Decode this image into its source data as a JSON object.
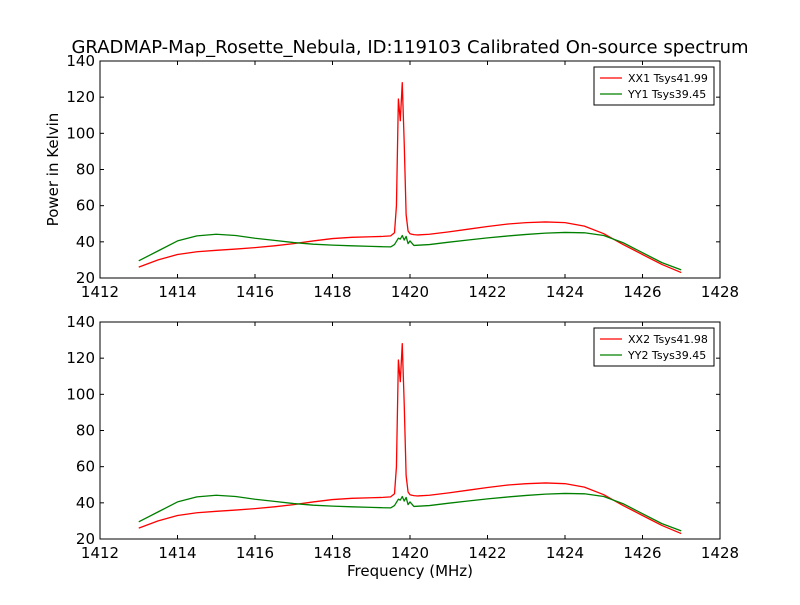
{
  "title": "GRADMAP-Map_Rosette_Nebula, ID:119103 Calibrated On-source spectrum",
  "colors": {
    "xx": "#ff0000",
    "yy": "#008000"
  },
  "chart_data": [
    {
      "type": "line",
      "title": "GRADMAP-Map_Rosette_Nebula, ID:119103 Calibrated On-source spectrum",
      "xlabel": "",
      "ylabel": "Power in Kelvin",
      "xlim": [
        1412,
        1428
      ],
      "ylim": [
        20,
        140
      ],
      "xticks": [
        "1412",
        "1414",
        "1416",
        "1418",
        "1420",
        "1422",
        "1424",
        "1426",
        "1428"
      ],
      "yticks": [
        "20",
        "40",
        "60",
        "80",
        "100",
        "120",
        "140"
      ],
      "grid": false,
      "legend_position": "top-right",
      "series": [
        {
          "name": "XX1 Tsys41.99",
          "color": "#ff0000",
          "x": [
            1413.0,
            1413.5,
            1414.0,
            1414.5,
            1415.0,
            1415.5,
            1416.0,
            1416.5,
            1417.0,
            1417.5,
            1418.0,
            1418.5,
            1419.0,
            1419.3,
            1419.5,
            1419.6,
            1419.65,
            1419.7,
            1419.75,
            1419.8,
            1419.85,
            1419.9,
            1419.95,
            1420.0,
            1420.05,
            1420.1,
            1420.2,
            1420.5,
            1421.0,
            1421.5,
            1422.0,
            1422.5,
            1423.0,
            1423.5,
            1424.0,
            1424.5,
            1425.0,
            1425.5,
            1426.0,
            1426.5,
            1427.0
          ],
          "values": [
            26,
            30,
            33,
            34.5,
            35.3,
            36,
            36.8,
            37.8,
            39,
            40.5,
            41.8,
            42.5,
            42.8,
            43.0,
            43.3,
            45,
            60,
            119,
            107,
            128,
            95,
            55,
            46,
            44.5,
            44.2,
            44.0,
            43.8,
            44.2,
            45.5,
            47,
            48.5,
            49.8,
            50.6,
            51.0,
            50.6,
            48.7,
            44.5,
            38.5,
            33,
            27.5,
            23
          ]
        },
        {
          "name": "YY1 Tsys39.45",
          "color": "#008000",
          "x": [
            1413.0,
            1413.5,
            1414.0,
            1414.5,
            1415.0,
            1415.5,
            1416.0,
            1416.5,
            1417.0,
            1417.5,
            1418.0,
            1418.5,
            1419.0,
            1419.3,
            1419.5,
            1419.6,
            1419.7,
            1419.75,
            1419.8,
            1419.85,
            1419.9,
            1419.95,
            1420.0,
            1420.1,
            1420.5,
            1421.0,
            1421.5,
            1422.0,
            1422.5,
            1423.0,
            1423.5,
            1424.0,
            1424.5,
            1425.0,
            1425.5,
            1426.0,
            1426.5,
            1427.0
          ],
          "values": [
            29.5,
            35,
            40.5,
            43.3,
            44.2,
            43.5,
            42,
            40.8,
            39.6,
            38.7,
            38.2,
            37.8,
            37.5,
            37.3,
            37.2,
            38.5,
            42,
            41.5,
            43.5,
            41,
            43,
            39,
            40.5,
            38,
            38.5,
            39.8,
            41,
            42.2,
            43.2,
            44.1,
            44.8,
            45.2,
            45.0,
            43.5,
            39.5,
            34,
            28.5,
            24.5
          ]
        }
      ]
    },
    {
      "type": "line",
      "title": "",
      "xlabel": "Frequency (MHz)",
      "ylabel": "",
      "xlim": [
        1412,
        1428
      ],
      "ylim": [
        20,
        140
      ],
      "xticks": [
        "1412",
        "1414",
        "1416",
        "1418",
        "1420",
        "1422",
        "1424",
        "1426",
        "1428"
      ],
      "yticks": [
        "20",
        "40",
        "60",
        "80",
        "100",
        "120",
        "140"
      ],
      "grid": false,
      "legend_position": "top-right",
      "series": [
        {
          "name": "XX2 Tsys41.98",
          "color": "#ff0000",
          "x": [
            1413.0,
            1413.5,
            1414.0,
            1414.5,
            1415.0,
            1415.5,
            1416.0,
            1416.5,
            1417.0,
            1417.5,
            1418.0,
            1418.5,
            1419.0,
            1419.3,
            1419.5,
            1419.6,
            1419.65,
            1419.7,
            1419.75,
            1419.8,
            1419.85,
            1419.9,
            1419.95,
            1420.0,
            1420.05,
            1420.1,
            1420.2,
            1420.5,
            1421.0,
            1421.5,
            1422.0,
            1422.5,
            1423.0,
            1423.5,
            1424.0,
            1424.5,
            1425.0,
            1425.5,
            1426.0,
            1426.5,
            1427.0
          ],
          "values": [
            26,
            30,
            33,
            34.5,
            35.3,
            36,
            36.8,
            37.8,
            39,
            40.5,
            41.8,
            42.5,
            42.8,
            43.0,
            43.3,
            45,
            60,
            119,
            107,
            128,
            95,
            55,
            46,
            44.5,
            44.2,
            44.0,
            43.8,
            44.2,
            45.5,
            47,
            48.5,
            49.8,
            50.6,
            51.0,
            50.6,
            48.7,
            44.5,
            38.5,
            33,
            27.5,
            23
          ]
        },
        {
          "name": "YY2 Tsys39.45",
          "color": "#008000",
          "x": [
            1413.0,
            1413.5,
            1414.0,
            1414.5,
            1415.0,
            1415.5,
            1416.0,
            1416.5,
            1417.0,
            1417.5,
            1418.0,
            1418.5,
            1419.0,
            1419.3,
            1419.5,
            1419.6,
            1419.7,
            1419.75,
            1419.8,
            1419.85,
            1419.9,
            1419.95,
            1420.0,
            1420.1,
            1420.5,
            1421.0,
            1421.5,
            1422.0,
            1422.5,
            1423.0,
            1423.5,
            1424.0,
            1424.5,
            1425.0,
            1425.5,
            1426.0,
            1426.5,
            1427.0
          ],
          "values": [
            29.5,
            35,
            40.5,
            43.3,
            44.2,
            43.5,
            42,
            40.8,
            39.6,
            38.7,
            38.2,
            37.8,
            37.5,
            37.3,
            37.2,
            38.5,
            42,
            41.5,
            43.5,
            41,
            43,
            39,
            40.5,
            38,
            38.5,
            39.8,
            41,
            42.2,
            43.2,
            44.1,
            44.8,
            45.2,
            45.0,
            43.5,
            39.5,
            34,
            28.5,
            24.5
          ]
        }
      ]
    }
  ]
}
